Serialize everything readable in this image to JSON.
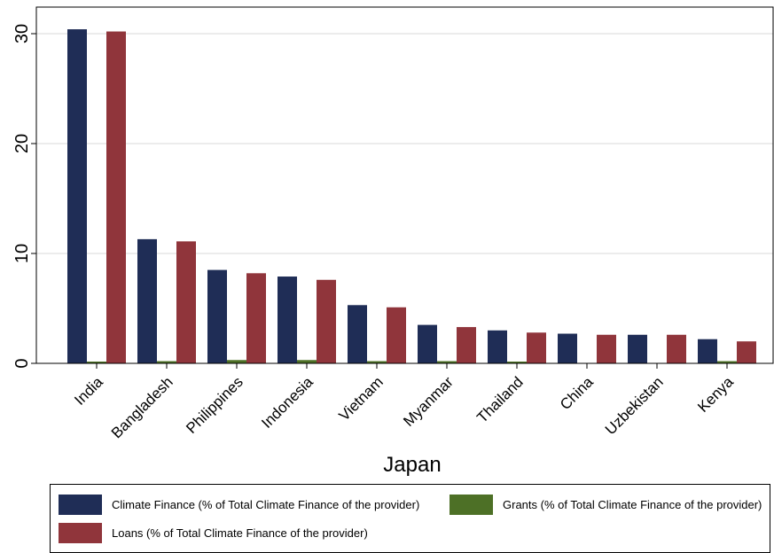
{
  "chart_data": {
    "type": "bar",
    "title": "",
    "xlabel": "Japan",
    "ylabel": "",
    "ylim": [
      0,
      32
    ],
    "yticks": [
      0,
      10,
      20,
      30
    ],
    "grid": true,
    "legend_position": "bottom",
    "categories": [
      "India",
      "Bangladesh",
      "Philippines",
      "Indonesia",
      "Vietnam",
      "Myanmar",
      "Thailand",
      "China",
      "Uzbekistan",
      "Kenya"
    ],
    "series": [
      {
        "name": "Climate Finance (% of Total Climate Finance of the provider)",
        "color": "#1f2d56",
        "values": [
          30.4,
          11.3,
          8.5,
          7.9,
          5.3,
          3.5,
          3.0,
          2.7,
          2.6,
          2.2
        ]
      },
      {
        "name": "Grants (% of Total Climate Finance of the provider)",
        "color": "#4d7026",
        "values": [
          0.1,
          0.2,
          0.3,
          0.3,
          0.2,
          0.2,
          0.1,
          0.0,
          0.0,
          0.2
        ]
      },
      {
        "name": "Loans (% of Total Climate Finance of the provider)",
        "color": "#90353b",
        "values": [
          30.2,
          11.1,
          8.2,
          7.6,
          5.1,
          3.3,
          2.8,
          2.6,
          2.6,
          2.0
        ]
      }
    ]
  }
}
